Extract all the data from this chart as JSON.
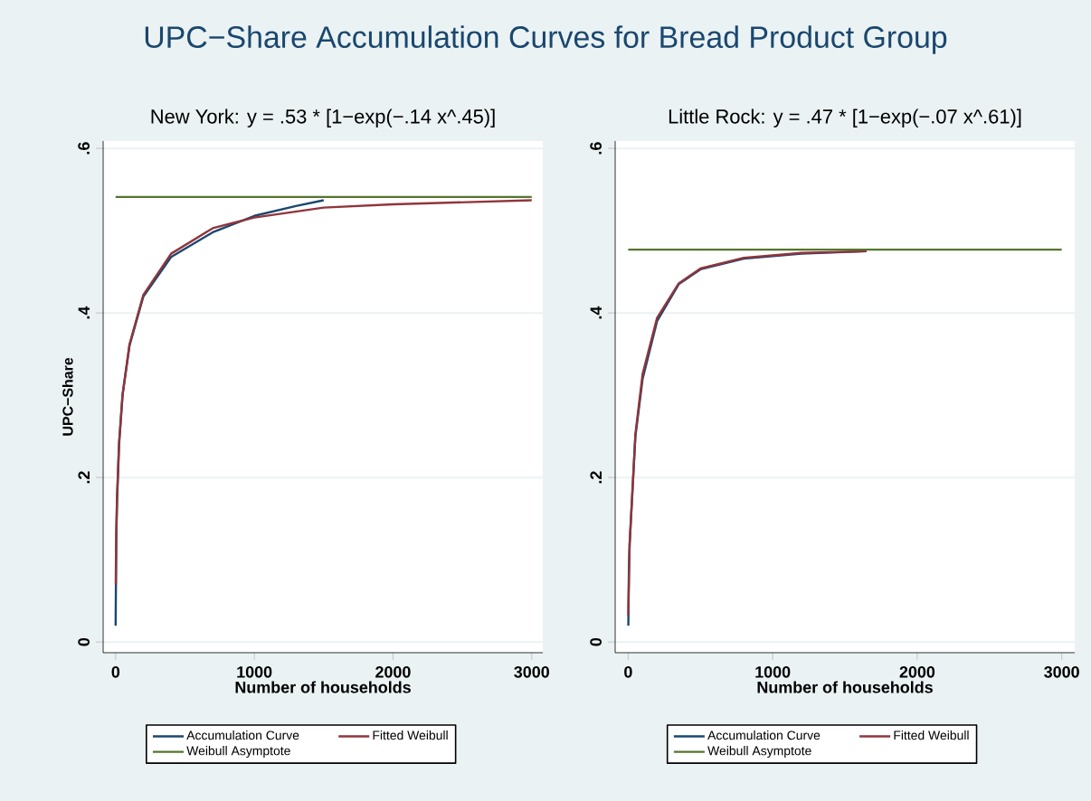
{
  "chart_data": [
    {
      "type": "line",
      "title": "UPC−Share Accumulation Curves for Bread Product Group",
      "subtitle": "New York: y = .53 * [1−exp(−.14 x^.45)]",
      "xlabel": "Number of households",
      "ylabel": "UPC−Share",
      "xlim": [
        -90,
        3080
      ],
      "xticks": [
        0,
        1000,
        2000,
        3000
      ],
      "ylim": [
        -0.013,
        0.609
      ],
      "yticks": [
        0,
        {
          "value": 0.2,
          "label": ".2"
        },
        {
          "value": 0.4,
          "label": ".4"
        },
        {
          "value": 0.6,
          "label": ".6"
        }
      ],
      "grid": "y",
      "legend": "bottom",
      "marker": "none",
      "line_style": "solid",
      "series": [
        {
          "name": "Accumulation Curve",
          "color": "#1a476f",
          "x": [
            0,
            5,
            10,
            25,
            50,
            100,
            200,
            400,
            700,
            1000,
            1300,
            1500
          ],
          "values": [
            0.02,
            0.13,
            0.17,
            0.24,
            0.3,
            0.36,
            0.42,
            0.468,
            0.498,
            0.518,
            0.53,
            0.537
          ]
        },
        {
          "name": "Fitted Weibull",
          "color": "#90353b",
          "x": [
            1,
            2,
            5,
            10,
            25,
            50,
            100,
            200,
            400,
            700,
            1000,
            1500,
            2000,
            3000
          ],
          "values": [
            0.07,
            0.094,
            0.136,
            0.176,
            0.243,
            0.301,
            0.362,
            0.422,
            0.472,
            0.503,
            0.516,
            0.528,
            0.532,
            0.537
          ]
        },
        {
          "name": "Weibull Asymptote",
          "color": "#55752f",
          "x": [
            0,
            3000
          ],
          "values": [
            0.541,
            0.541
          ]
        }
      ]
    },
    {
      "type": "line",
      "subtitle": "Little Rock: y = .47 * [1−exp(−.07 x^.61)]",
      "xlabel": "Number of households",
      "xlim": [
        -90,
        3090
      ],
      "xticks": [
        0,
        1000,
        2000,
        3000
      ],
      "ylim": [
        -0.013,
        0.609
      ],
      "yticks": [
        0,
        {
          "value": 0.2,
          "label": ".2"
        },
        {
          "value": 0.4,
          "label": ".4"
        },
        {
          "value": 0.6,
          "label": ".6"
        }
      ],
      "grid": "y",
      "legend": "bottom",
      "marker": "none",
      "line_style": "solid",
      "series": [
        {
          "name": "Accumulation Curve",
          "color": "#1a476f",
          "x": [
            1,
            5,
            10,
            50,
            100,
            200,
            350,
            500,
            800,
            1200,
            1650
          ],
          "values": [
            0.02,
            0.09,
            0.12,
            0.25,
            0.32,
            0.39,
            0.435,
            0.453,
            0.466,
            0.472,
            0.475
          ]
        },
        {
          "name": "Fitted Weibull",
          "color": "#90353b",
          "x": [
            1,
            2,
            10,
            50,
            100,
            200,
            350,
            500,
            800,
            1200,
            1650
          ],
          "values": [
            0.032,
            0.048,
            0.118,
            0.253,
            0.326,
            0.394,
            0.436,
            0.454,
            0.467,
            0.473,
            0.475
          ]
        },
        {
          "name": "Weibull Asymptote",
          "color": "#55752f",
          "x": [
            0,
            3000
          ],
          "values": [
            0.477,
            0.477
          ]
        }
      ]
    }
  ]
}
